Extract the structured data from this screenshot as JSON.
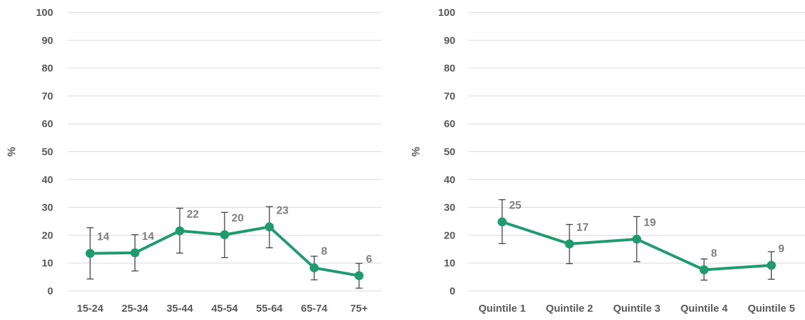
{
  "chart_data": [
    {
      "type": "line",
      "ylabel": "%",
      "xlabel": "",
      "ylim": [
        0,
        100
      ],
      "yticks": [
        0,
        10,
        20,
        30,
        40,
        50,
        60,
        70,
        80,
        90,
        100
      ],
      "grid": true,
      "colors": {
        "series": "#1f9b6e",
        "error_bars": "#404040",
        "gridlines": "#d9d9d9"
      },
      "categories": [
        "15-24",
        "25-34",
        "35-44",
        "45-54",
        "55-64",
        "65-74",
        "75+"
      ],
      "series": [
        {
          "values": [
            13.5,
            13.7,
            21.6,
            20.2,
            23.0,
            8.3,
            5.5
          ],
          "labels": [
            "14",
            "14",
            "22",
            "20",
            "23",
            "8",
            "6"
          ],
          "error_low": [
            4.3,
            7.2,
            13.6,
            12.0,
            15.5,
            4.0,
            1.0
          ],
          "error_high": [
            22.7,
            20.2,
            29.7,
            28.2,
            30.3,
            12.5,
            9.9
          ]
        }
      ]
    },
    {
      "type": "line",
      "ylabel": "%",
      "xlabel": "",
      "ylim": [
        0,
        100
      ],
      "yticks": [
        0,
        10,
        20,
        30,
        40,
        50,
        60,
        70,
        80,
        90,
        100
      ],
      "grid": true,
      "colors": {
        "series": "#1f9b6e",
        "error_bars": "#404040",
        "gridlines": "#d9d9d9"
      },
      "categories": [
        "Quintile 1",
        "Quintile 2",
        "Quintile 3",
        "Quintile 4",
        "Quintile 5"
      ],
      "series": [
        {
          "values": [
            24.8,
            16.9,
            18.6,
            7.6,
            9.2
          ],
          "labels": [
            "25",
            "17",
            "19",
            "8",
            "9"
          ],
          "error_low": [
            17.0,
            9.8,
            10.5,
            3.9,
            4.2
          ],
          "error_high": [
            32.8,
            23.9,
            26.7,
            11.5,
            14.1
          ]
        }
      ]
    }
  ]
}
